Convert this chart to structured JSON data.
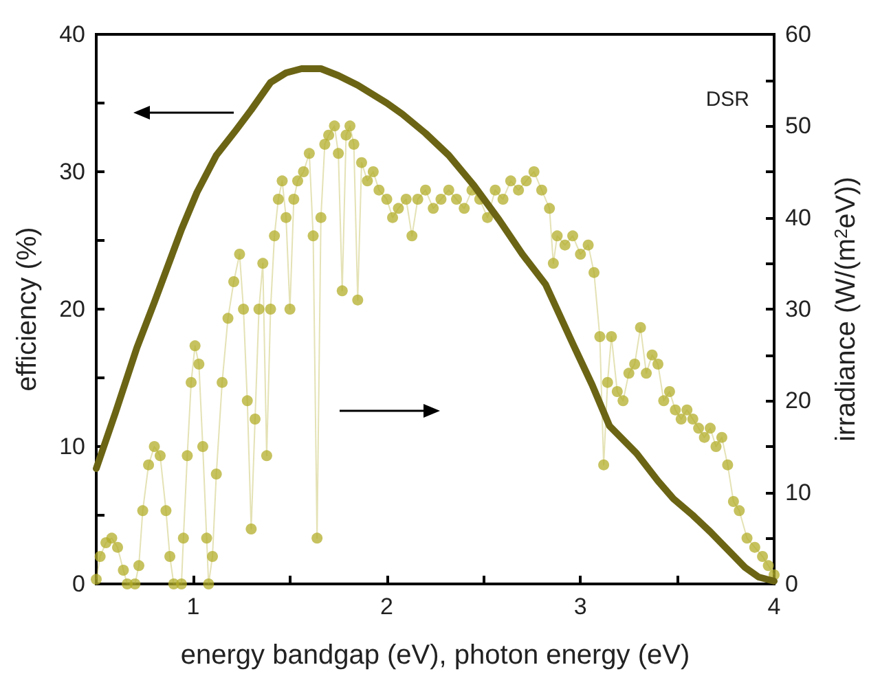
{
  "chart_data": {
    "type": "line",
    "xlabel": "energy bandgap (eV), photon energy (eV)",
    "ylabel": "efficiency (%)",
    "y2label": "irradiance (W/(m$^{2}$eV))",
    "annotations": [
      "DSR"
    ],
    "xlim": [
      0.5,
      4
    ],
    "xticks": [
      {
        "value": 1,
        "label": "1"
      },
      {
        "value": 1.5,
        "label": null
      },
      2,
      {
        "value": 2.5,
        "label": null
      },
      3,
      {
        "value": 3.5,
        "label": null
      },
      4
    ],
    "ylim": [
      0,
      40
    ],
    "yticks": [
      0,
      {
        "value": 5,
        "label": null
      },
      10,
      {
        "value": 15,
        "label": null
      },
      20,
      {
        "value": 25,
        "label": null
      },
      30,
      {
        "value": 35,
        "label": null
      },
      40
    ],
    "y2lim": [
      0,
      60
    ],
    "y2ticks": [
      0,
      {
        "value": 5,
        "label": null
      },
      10,
      {
        "value": 15,
        "label": null
      },
      20,
      {
        "value": 25,
        "label": null
      },
      30,
      {
        "value": 35,
        "label": null
      },
      40,
      {
        "value": 45,
        "label": null
      },
      50,
      {
        "value": 55,
        "label": null
      },
      60
    ],
    "series": [
      {
        "type": "line",
        "color": "#6b6414",
        "marker": "none",
        "axis": "y",
        "x": [
          0.5,
          0.6,
          0.71,
          0.8,
          0.94,
          1.02,
          1.12,
          1.22,
          1.3,
          1.35,
          1.4,
          1.48,
          1.56,
          1.66,
          1.75,
          1.85,
          2.0,
          2.08,
          2.2,
          2.32,
          2.45,
          2.58,
          2.7,
          2.82,
          2.96,
          3.06,
          3.15,
          3.29,
          3.4,
          3.48,
          3.58,
          3.67,
          3.76,
          3.85,
          3.92,
          4.0
        ],
        "values": [
          8.4,
          12.5,
          17.2,
          20.5,
          25.8,
          28.5,
          31.2,
          33,
          34.5,
          35.5,
          36.5,
          37.2,
          37.5,
          37.5,
          37,
          36.3,
          35,
          34.2,
          32.8,
          31.2,
          29,
          26.5,
          24,
          21.8,
          17.5,
          14.5,
          11.5,
          9.5,
          7.5,
          6.2,
          5,
          3.8,
          2.5,
          1.2,
          0.5,
          0.2
        ]
      },
      {
        "type": "line",
        "color": "#b3ad2a",
        "marker": "circle",
        "axis": "y2",
        "x": [
          0.5,
          0.52,
          0.55,
          0.58,
          0.61,
          0.64,
          0.66,
          0.7,
          0.72,
          0.74,
          0.77,
          0.8,
          0.83,
          0.86,
          0.88,
          0.9,
          0.94,
          0.95,
          0.97,
          0.99,
          1.01,
          1.03,
          1.05,
          1.07,
          1.08,
          1.1,
          1.12,
          1.15,
          1.18,
          1.21,
          1.24,
          1.26,
          1.28,
          1.3,
          1.32,
          1.34,
          1.36,
          1.38,
          1.4,
          1.42,
          1.44,
          1.46,
          1.48,
          1.5,
          1.52,
          1.54,
          1.57,
          1.6,
          1.62,
          1.64,
          1.66,
          1.68,
          1.7,
          1.73,
          1.75,
          1.77,
          1.79,
          1.81,
          1.83,
          1.85,
          1.87,
          1.9,
          1.93,
          1.96,
          2.0,
          2.03,
          2.06,
          2.1,
          2.13,
          2.16,
          2.2,
          2.24,
          2.28,
          2.32,
          2.36,
          2.4,
          2.44,
          2.48,
          2.52,
          2.56,
          2.6,
          2.64,
          2.68,
          2.72,
          2.76,
          2.8,
          2.84,
          2.86,
          2.88,
          2.92,
          2.96,
          3.0,
          3.04,
          3.07,
          3.1,
          3.12,
          3.14,
          3.16,
          3.19,
          3.22,
          3.25,
          3.28,
          3.31,
          3.34,
          3.37,
          3.4,
          3.43,
          3.46,
          3.49,
          3.52,
          3.55,
          3.58,
          3.61,
          3.64,
          3.67,
          3.7,
          3.73,
          3.76,
          3.79,
          3.82,
          3.86,
          3.9,
          3.94,
          3.97,
          4.0
        ],
        "values": [
          0.5,
          3,
          4.5,
          5,
          4,
          1.5,
          0,
          0,
          2,
          8,
          13,
          15,
          14,
          8,
          3,
          0,
          0,
          5,
          14,
          22,
          26,
          24,
          15,
          5,
          0,
          3,
          12,
          22,
          29,
          33,
          36,
          30,
          20,
          6,
          18,
          30,
          35,
          14,
          30,
          38,
          42,
          44,
          40,
          30,
          42,
          44,
          45,
          47,
          38,
          5,
          40,
          48,
          49,
          50,
          47,
          32,
          49,
          50,
          48,
          31,
          46,
          44,
          45,
          43,
          42,
          40,
          41,
          42,
          38,
          42,
          43,
          41,
          42,
          43,
          42,
          41,
          43,
          42,
          40,
          43,
          42,
          44,
          43,
          44,
          45,
          43,
          41,
          35,
          38,
          37,
          38,
          36,
          37,
          34,
          27,
          13,
          22,
          27,
          21,
          20,
          23,
          24,
          28,
          23,
          25,
          24,
          20,
          21,
          19,
          18,
          19,
          18,
          17,
          16,
          17,
          15,
          16,
          13,
          9,
          8,
          5,
          4,
          3,
          2,
          1
        ]
      }
    ]
  }
}
